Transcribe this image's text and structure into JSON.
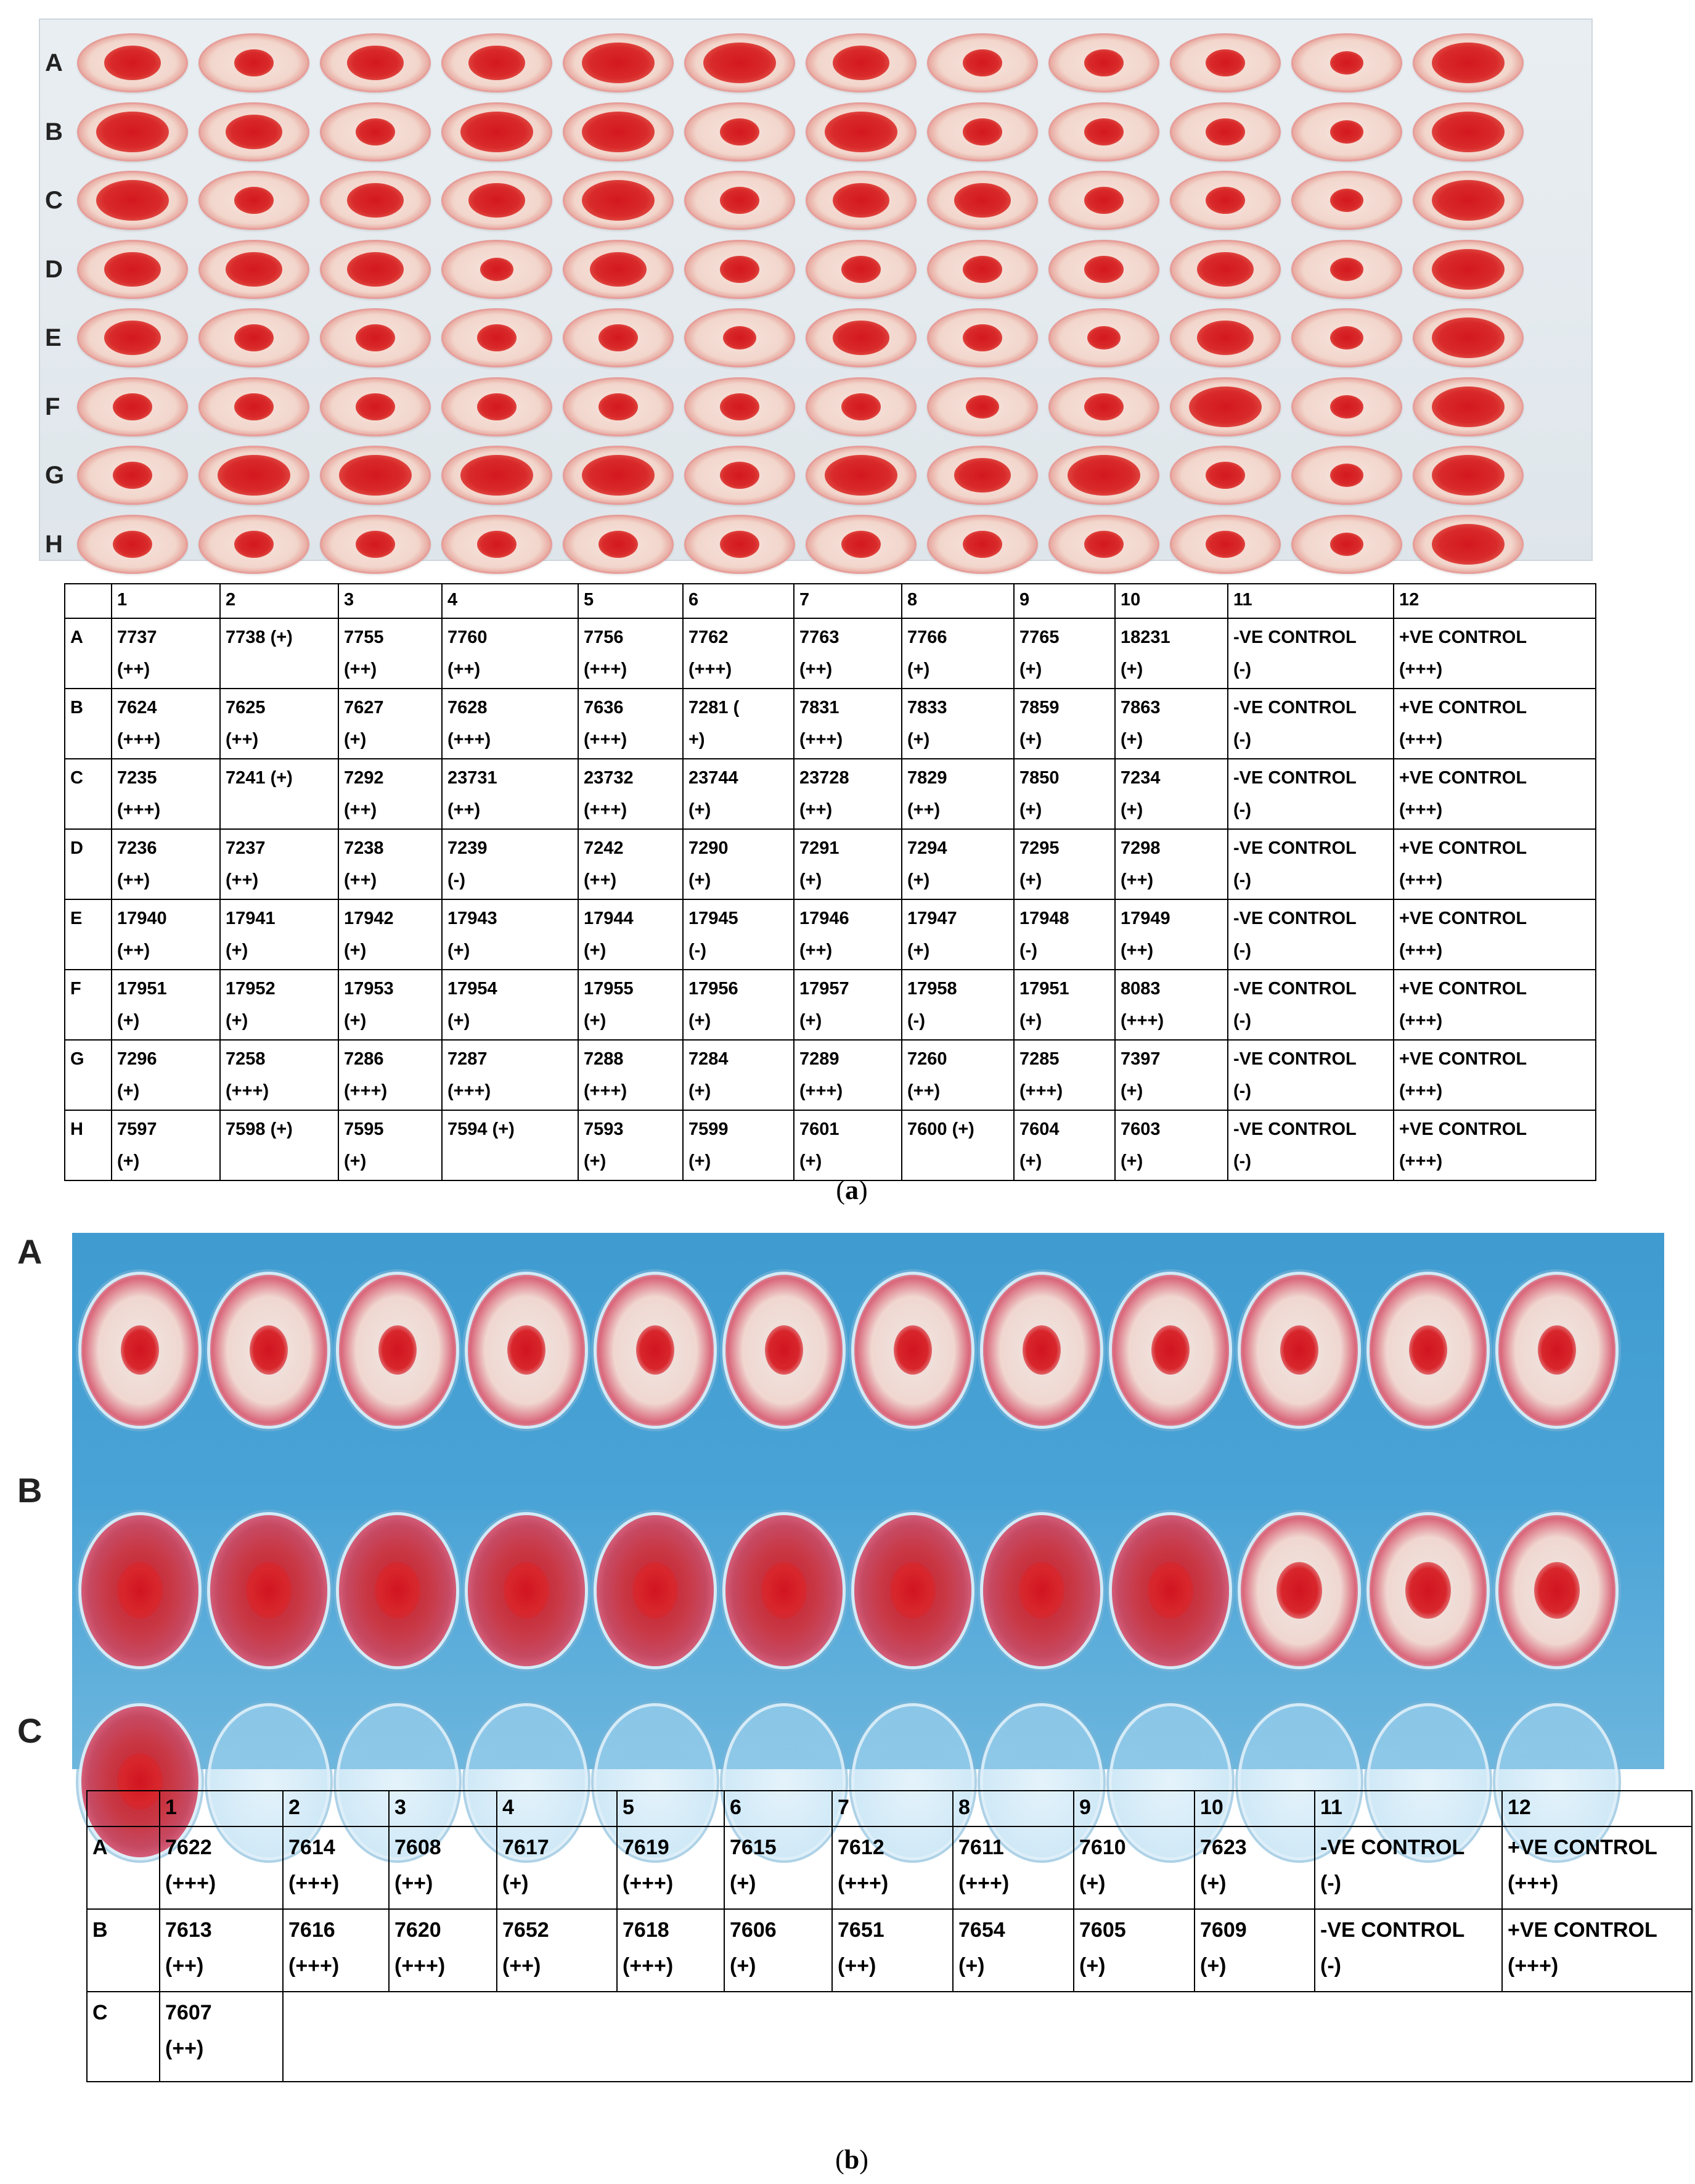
{
  "colors": {
    "plate_a_bg": "#e6ecf0",
    "blood_red": "#d3181f",
    "plate_b_bg": "#4aa3d6",
    "grid_line": "#000000"
  },
  "plate_a": {
    "row_letters": [
      "A",
      "B",
      "C",
      "D",
      "E",
      "F",
      "G",
      "H"
    ],
    "columns": [
      "1",
      "2",
      "3",
      "4",
      "5",
      "6",
      "7",
      "8",
      "9",
      "10",
      "11",
      "12"
    ],
    "rows": [
      {
        "letter": "A",
        "cells": [
          "7737\n(++)",
          "7738 (+)",
          "7755\n(++)",
          "7760\n(++)",
          "7756\n(+++)",
          "7762\n(+++)",
          "7763\n(++)",
          "7766\n(+)",
          "7765\n(+)",
          "18231\n(+)",
          "-VE CONTROL\n(-)",
          "+VE CONTROL\n(+++)"
        ]
      },
      {
        "letter": "B",
        "cells": [
          "7624\n(+++)",
          "7625\n(++)",
          "7627\n(+)",
          "7628\n(+++)",
          "7636\n(+++)",
          "7281 (\n+)",
          "7831\n(+++)",
          "7833\n(+)",
          "7859\n(+)",
          "7863\n(+)",
          "-VE CONTROL\n(-)",
          "+VE CONTROL\n(+++)"
        ]
      },
      {
        "letter": "C",
        "cells": [
          "7235\n(+++)",
          "7241 (+)",
          "7292\n(++)",
          "23731\n(++)",
          "23732\n(+++)",
          "23744\n(+)",
          "23728\n(++)",
          "7829\n(++)",
          "7850\n(+)",
          "7234\n(+)",
          "-VE CONTROL\n(-)",
          "+VE CONTROL\n(+++)"
        ]
      },
      {
        "letter": "D",
        "cells": [
          "7236\n(++)",
          "7237\n(++)",
          "7238\n(++)",
          "7239\n(-)",
          "7242\n(++)",
          "7290\n(+)",
          "7291\n(+)",
          "7294\n(+)",
          "7295\n(+)",
          "7298\n(++)",
          "-VE CONTROL\n(-)",
          "+VE CONTROL\n(+++)"
        ]
      },
      {
        "letter": "E",
        "cells": [
          "17940\n(++)",
          "17941\n(+)",
          "17942\n(+)",
          "17943\n(+)",
          "17944\n(+)",
          "17945\n(-)",
          "17946\n(++)",
          "17947\n(+)",
          "17948\n(-)",
          "17949\n(++)",
          "-VE CONTROL\n(-)",
          "+VE CONTROL\n(+++)"
        ]
      },
      {
        "letter": "F",
        "cells": [
          "17951\n(+)",
          "17952\n(+)",
          "17953\n(+)",
          "17954\n(+)",
          "17955\n(+)",
          "17956\n(+)",
          "17957\n(+)",
          "17958\n(-)",
          "17951\n(+)",
          "8083\n(+++)",
          "-VE CONTROL\n(-)",
          "+VE CONTROL\n(+++)"
        ]
      },
      {
        "letter": "G",
        "cells": [
          "7296\n(+)",
          "7258\n(+++)",
          "7286\n(+++)",
          "7287\n(+++)",
          "7288\n(+++)",
          "7284\n(+)",
          "7289\n(+++)",
          "7260\n(++)",
          "7285\n(+++)",
          "7397\n(+)",
          "-VE CONTROL\n(-)",
          "+VE CONTROL\n(+++)"
        ]
      },
      {
        "letter": "H",
        "cells": [
          "7597\n(+)",
          "7598 (+)",
          "7595\n(+)",
          "7594 (+)",
          "7593\n(+)",
          "7599\n(+)",
          "7601\n(+)",
          "7600 (+)",
          "7604\n(+)",
          "7603\n(+)",
          "-VE CONTROL\n(-)",
          "+VE CONTROL\n(+++)"
        ]
      }
    ],
    "caption_open": "(",
    "caption_letter": "a",
    "caption_close": ")"
  },
  "plate_b": {
    "row_letters": [
      "A",
      "B",
      "C"
    ],
    "columns": [
      "1",
      "2",
      "3",
      "4",
      "5",
      "6",
      "7",
      "8",
      "9",
      "10",
      "11",
      "12"
    ],
    "rows": [
      {
        "letter": "A",
        "cells": [
          "7622\n(+++)",
          "7614\n(+++)",
          "7608\n(++)",
          "7617\n(+)",
          "7619\n(+++)",
          "7615\n(+)",
          "7612\n(+++)",
          "7611\n(+++)",
          "7610\n(+)",
          "7623\n(+)",
          "-VE CONTROL\n(-)",
          "+VE CONTROL\n(+++)"
        ]
      },
      {
        "letter": "B",
        "cells": [
          "7613\n(++)",
          "7616\n(+++)",
          "7620\n(+++)",
          "7652\n(++)",
          "7618\n(+++)",
          "7606\n(+)",
          "7651\n(++)",
          "7654\n(+)",
          "7605\n(+)",
          "7609\n(+)",
          "-VE CONTROL\n(-)",
          "+VE CONTROL\n(+++)"
        ]
      },
      {
        "letter": "C",
        "cells": [
          "7607\n(++)"
        ]
      }
    ],
    "caption_open": "(",
    "caption_letter": "b",
    "caption_close": ")"
  }
}
